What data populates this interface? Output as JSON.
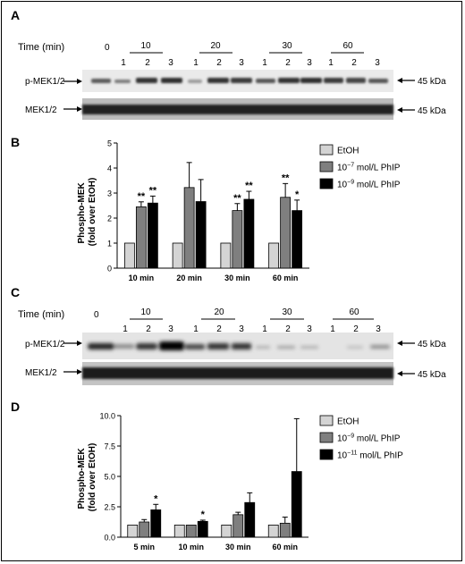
{
  "frame_border": true,
  "colors": {
    "ethanol_bar": "#d4d4d4",
    "mid_bar": "#7f7f7f",
    "dark_bar": "#000000"
  },
  "blots": [
    {
      "letter": "A",
      "time_label": "Time (min)",
      "zero_label": "0",
      "time_groups": [
        "10",
        "20",
        "30",
        "60"
      ],
      "lanes": [
        "1",
        "2",
        "3"
      ],
      "rows": [
        {
          "label": "p-MEK1/2",
          "kda": "45 kDa"
        },
        {
          "label": "MEK1/2",
          "kda": "45 kDa"
        }
      ]
    },
    {
      "letter": "C",
      "time_label": "Time (min)",
      "zero_label": "0",
      "time_groups": [
        "10",
        "20",
        "30",
        "60"
      ],
      "lanes": [
        "1",
        "2",
        "3"
      ],
      "rows": [
        {
          "label": "p-MEK1/2",
          "kda": "45 kDa"
        },
        {
          "label": "MEK1/2",
          "kda": "45 kDa"
        }
      ]
    }
  ],
  "chart_data": [
    {
      "letter": "B",
      "type": "bar",
      "ylabel_lines": [
        "Phospho-MEK",
        "(fold over EtOH)"
      ],
      "categories": [
        "10 min",
        "20 min",
        "30 min",
        "60 min"
      ],
      "ylim": [
        0,
        5
      ],
      "yticks": [
        "0",
        "1",
        "2",
        "3",
        "4",
        "5"
      ],
      "legend_position": "top-right",
      "series": [
        {
          "name": "EtOH",
          "color": "#d4d4d4",
          "values": [
            1,
            1,
            1,
            1
          ],
          "errors": [
            0,
            0,
            0,
            0
          ],
          "marks": [
            "",
            "",
            "",
            ""
          ]
        },
        {
          "name_base": "10",
          "name_exp": "−7",
          "name_unit": " mol/L PhIP",
          "color": "#7f7f7f",
          "values": [
            2.45,
            3.22,
            2.3,
            2.83
          ],
          "errors": [
            0.2,
            1.0,
            0.28,
            0.55
          ],
          "marks": [
            "**",
            "",
            "**",
            "**"
          ]
        },
        {
          "name_base": "10",
          "name_exp": "−9",
          "name_unit": " mol/L PhIP",
          "color": "#000000",
          "values": [
            2.6,
            2.66,
            2.75,
            2.3
          ],
          "errors": [
            0.28,
            0.88,
            0.32,
            0.42
          ],
          "marks": [
            "**",
            "",
            "**",
            "*"
          ]
        }
      ]
    },
    {
      "letter": "D",
      "type": "bar",
      "ylabel_lines": [
        "Phospho-MEK",
        "(fold over EtOH)"
      ],
      "categories": [
        "5 min",
        "10 min",
        "30 min",
        "60 min"
      ],
      "ylim": [
        0,
        10
      ],
      "yticks": [
        "0.0",
        "2.5",
        "5.0",
        "7.5",
        "10.0"
      ],
      "legend_position": "top-right",
      "series": [
        {
          "name": "EtOH",
          "color": "#d4d4d4",
          "values": [
            1,
            1,
            1,
            1
          ],
          "errors": [
            0,
            0,
            0,
            0
          ],
          "marks": [
            "",
            "",
            "",
            ""
          ]
        },
        {
          "name_base": "10",
          "name_exp": "−9",
          "name_unit": " mol/L PhIP",
          "color": "#7f7f7f",
          "values": [
            1.25,
            1.0,
            1.85,
            1.15
          ],
          "errors": [
            0.2,
            0.0,
            0.2,
            0.5
          ],
          "marks": [
            "",
            "",
            "",
            ""
          ]
        },
        {
          "name_base": "10",
          "name_exp": "−11",
          "name_unit": " mol/L PhIP",
          "color": "#000000",
          "values": [
            2.25,
            1.3,
            2.85,
            5.4
          ],
          "errors": [
            0.45,
            0.1,
            0.8,
            4.35
          ],
          "marks": [
            "*",
            "*",
            "",
            ""
          ]
        }
      ]
    }
  ]
}
